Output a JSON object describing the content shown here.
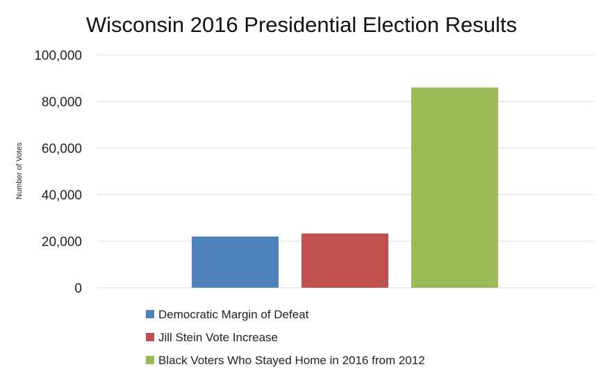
{
  "chart_data": {
    "type": "bar",
    "title": "Wisconsin 2016 Presidential Election Results",
    "xlabel": "",
    "ylabel": "Number of Votes",
    "ylim": [
      0,
      100000
    ],
    "yticks": [
      0,
      20000,
      40000,
      60000,
      80000,
      100000
    ],
    "ytick_labels": [
      "0",
      "20,000",
      "40,000",
      "60,000",
      "80,000",
      "100,000"
    ],
    "grid": true,
    "legend_position": "bottom",
    "series": [
      {
        "name": "Democratic Margin of Defeat",
        "values": [
          22000
        ],
        "color": "#4f81bd"
      },
      {
        "name": "Jill Stein Vote Increase",
        "values": [
          23300
        ],
        "color": "#c0504d"
      },
      {
        "name": "Black Voters Who Stayed Home in 2016 from 2012",
        "values": [
          86000
        ],
        "color": "#9bbb59"
      }
    ]
  }
}
